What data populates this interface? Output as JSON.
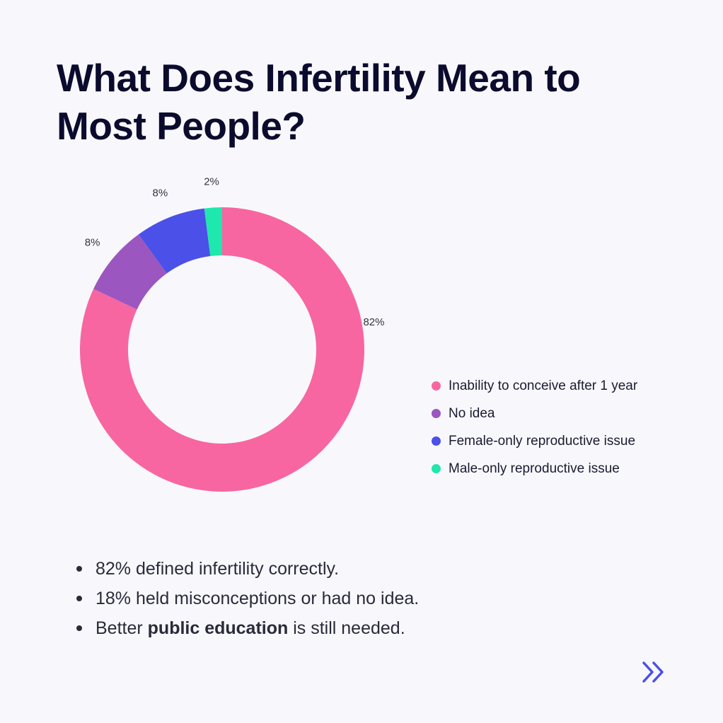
{
  "title": "What Does Infertility Mean to Most People?",
  "chart_data": {
    "type": "pie",
    "variant": "donut",
    "categories": [
      "Inability to conceive after 1 year",
      "No idea",
      "Female-only reproductive issue",
      "Male-only reproductive issue"
    ],
    "values": [
      82,
      8,
      8,
      2
    ],
    "value_labels": [
      "82%",
      "8%",
      "8%",
      "2%"
    ],
    "colors": [
      "#f766a1",
      "#9b56c0",
      "#4b50e8",
      "#1ee8ad"
    ],
    "legend_position": "right"
  },
  "bullets": [
    {
      "text": "82% defined infertility correctly."
    },
    {
      "text": "18% held misconceptions or had no idea."
    },
    {
      "before": "Better ",
      "bold": "public education",
      "after": " is still needed."
    }
  ],
  "icons": {
    "next": "double-chevron-right-icon"
  },
  "colors": {
    "title": "#0b0b2e",
    "background": "#f8f8fc",
    "accent": "#4b50e8"
  }
}
